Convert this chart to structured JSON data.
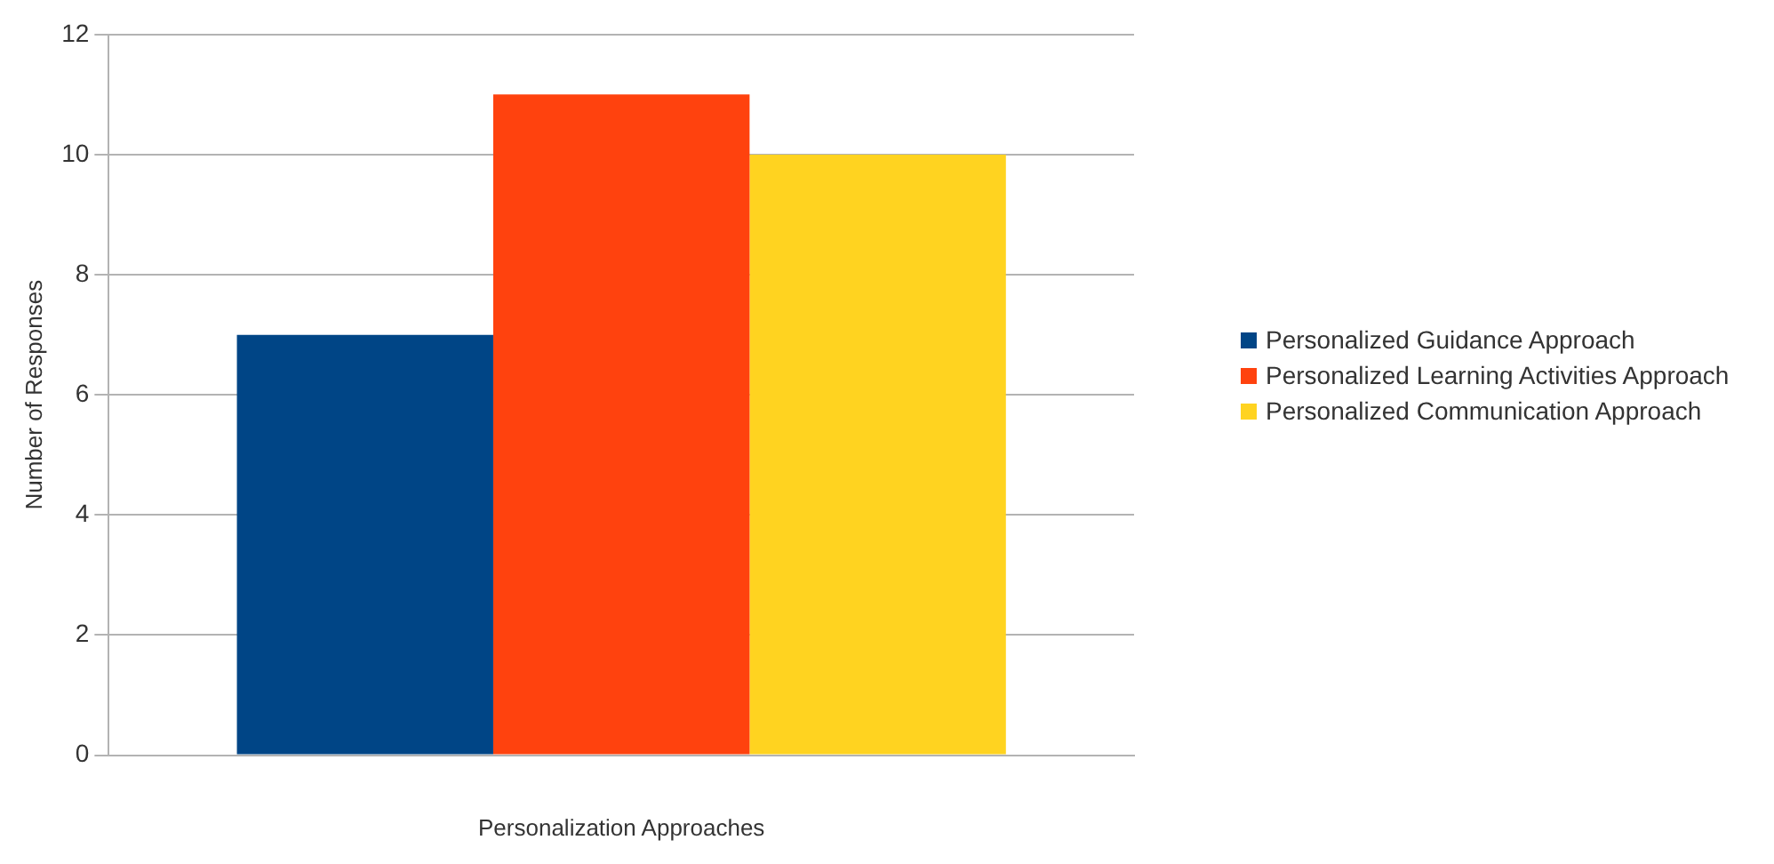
{
  "chart_data": {
    "type": "bar",
    "xlabel": "Personalization Approaches",
    "ylabel": "Number of Responses",
    "categories": [
      null
    ],
    "series": [
      {
        "name": "Personalized Guidance Approach",
        "color": "#004586",
        "values": [
          7
        ]
      },
      {
        "name": "Personalized Learning Activities Approach",
        "color": "#ff420e",
        "values": [
          11
        ]
      },
      {
        "name": "Personalized Communication Approach",
        "color": "#ffd320",
        "values": [
          10
        ]
      }
    ],
    "ylim": [
      0,
      12
    ],
    "yticks": [
      0,
      2,
      4,
      6,
      8,
      10,
      12
    ],
    "grid": "y",
    "legend": "right"
  }
}
